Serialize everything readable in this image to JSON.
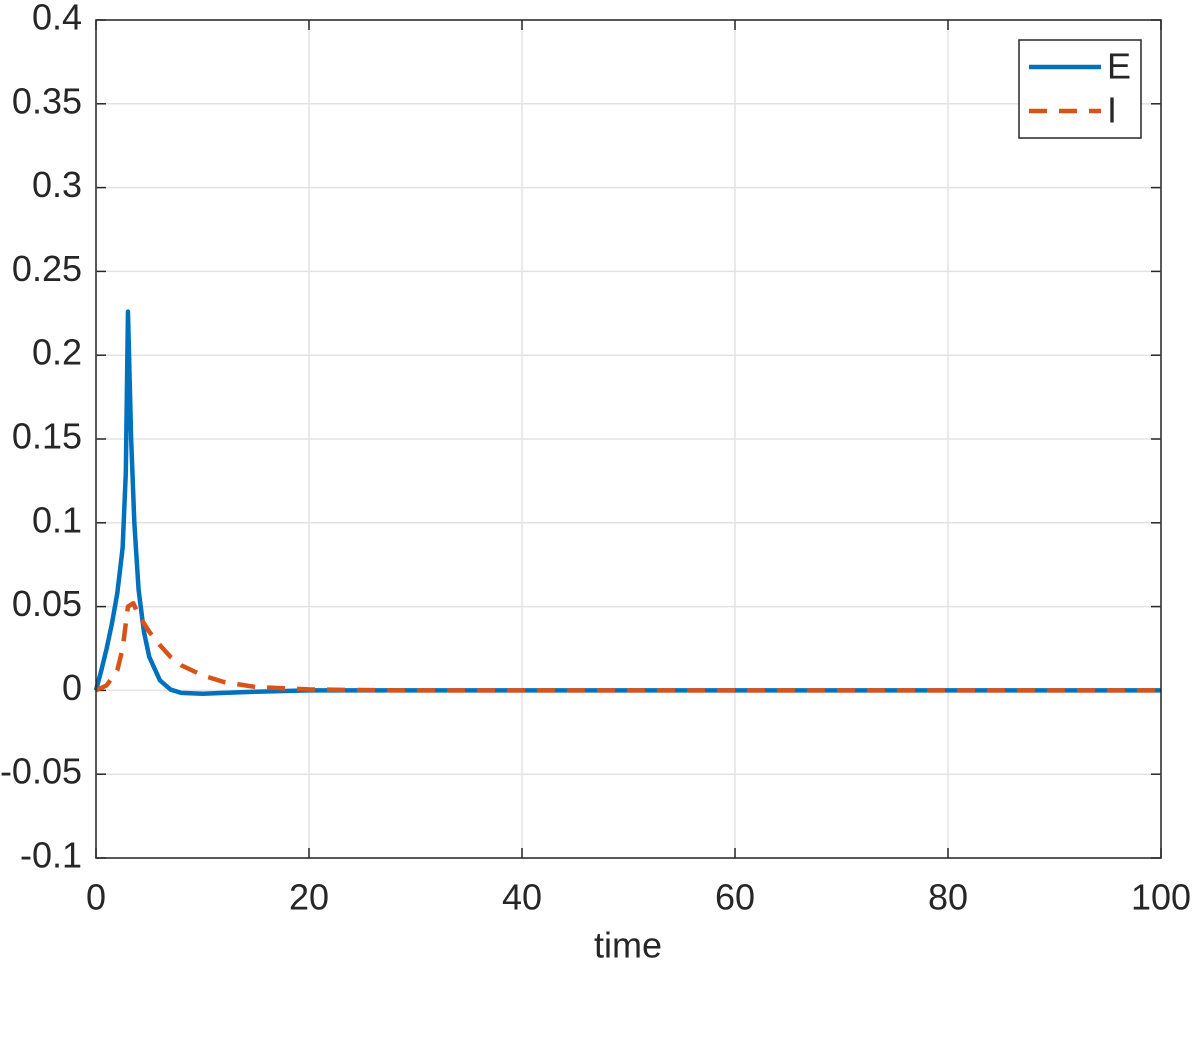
{
  "chart_data": {
    "type": "line",
    "xlabel": "time",
    "xlim": [
      0,
      100
    ],
    "ylim": [
      -0.1,
      0.4
    ],
    "xticks": [
      0,
      20,
      40,
      60,
      80,
      100
    ],
    "yticks": [
      -0.1,
      -0.05,
      0,
      0.05,
      0.1,
      0.15,
      0.2,
      0.25,
      0.3,
      0.35,
      0.4
    ],
    "grid": true,
    "legend": "upper right",
    "series": [
      {
        "name": "E",
        "color": "#0072bd",
        "style": "solid",
        "x": [
          0,
          0.5,
          1,
          1.5,
          2,
          2.5,
          2.8,
          3,
          3.3,
          3.6,
          4,
          4.5,
          5,
          6,
          7,
          8,
          10,
          12,
          15,
          20,
          30,
          100
        ],
        "values": [
          0,
          0.012,
          0.025,
          0.04,
          0.058,
          0.085,
          0.13,
          0.226,
          0.15,
          0.1,
          0.06,
          0.035,
          0.02,
          0.006,
          0.0005,
          -0.0015,
          -0.002,
          -0.0015,
          -0.0008,
          0,
          0,
          0
        ]
      },
      {
        "name": "I",
        "color": "#d95319",
        "style": "dashed",
        "x": [
          0,
          1,
          2,
          2.5,
          3,
          3.5,
          4,
          5,
          6,
          7,
          8,
          10,
          12,
          15,
          20,
          25,
          30,
          100
        ],
        "values": [
          0,
          0.003,
          0.012,
          0.025,
          0.05,
          0.052,
          0.045,
          0.035,
          0.027,
          0.02,
          0.015,
          0.009,
          0.005,
          0.002,
          0.0006,
          0.0002,
          0,
          0
        ]
      }
    ]
  }
}
